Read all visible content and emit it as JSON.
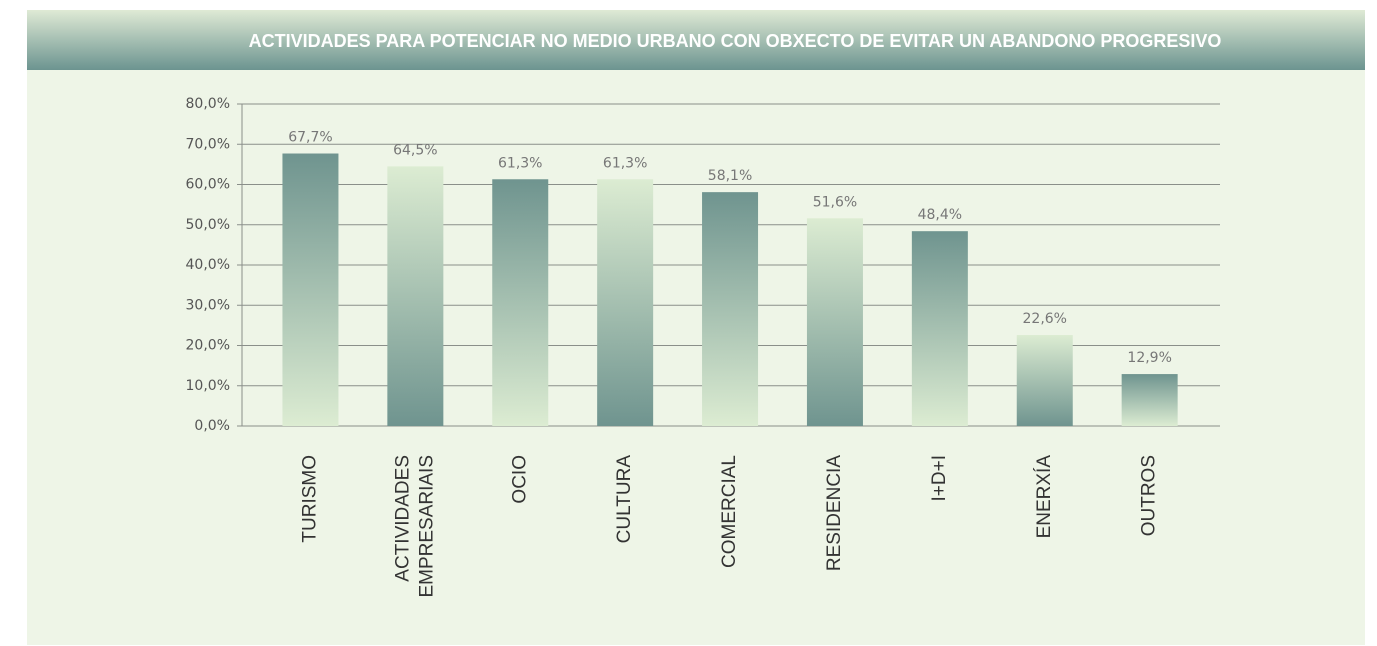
{
  "chart_data": {
    "type": "bar",
    "title": "ACTIVIDADES PARA POTENCIAR NO MEDIO URBANO CON OBXECTO DE EVITAR UN ABANDONO PROGRESIVO",
    "categories": [
      "TURISMO",
      "ACTIVIDADES EMPRESARIAIS",
      "OCIO",
      "CULTURA",
      "COMERCIAL",
      "RESIDENCIA",
      "I+D+I",
      "ENERXÍA",
      "OUTROS"
    ],
    "values": [
      67.7,
      64.5,
      61.3,
      61.3,
      58.1,
      51.6,
      48.4,
      22.6,
      12.9
    ],
    "value_labels": [
      "67,7%",
      "64,5%",
      "61,3%",
      "61,3%",
      "58,1%",
      "51,6%",
      "48,4%",
      "22,6%",
      "12,9%"
    ],
    "colors": [
      "#6f948f",
      "#dcecd2"
    ],
    "ylim": [
      0,
      80
    ],
    "yticks": [
      {
        "value": 0,
        "label": "0,0%"
      },
      {
        "value": 10,
        "label": "10,0%"
      },
      {
        "value": 20,
        "label": "20,0%"
      },
      {
        "value": 30,
        "label": "30,0%"
      },
      {
        "value": 40,
        "label": "40,0%"
      },
      {
        "value": 50,
        "label": "50,0%"
      },
      {
        "value": 60,
        "label": "60,0%"
      },
      {
        "value": 70,
        "label": "70,0%"
      },
      {
        "value": 80,
        "label": "80,0%"
      }
    ],
    "grid": true
  }
}
